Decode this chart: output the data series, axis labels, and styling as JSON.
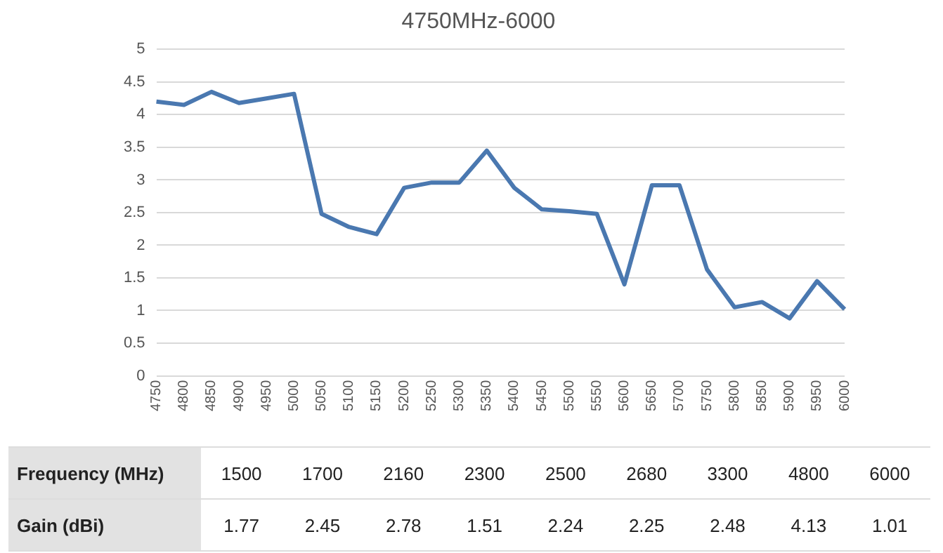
{
  "chart_data": [
    {
      "type": "line",
      "title": "4750MHz-6000",
      "categories": [
        "4750",
        "4800",
        "4850",
        "4900",
        "4950",
        "5000",
        "5050",
        "5100",
        "5150",
        "5200",
        "5250",
        "5300",
        "5350",
        "5400",
        "5450",
        "5500",
        "5550",
        "5600",
        "5650",
        "5700",
        "5750",
        "5800",
        "5850",
        "5900",
        "5950",
        "6000"
      ],
      "series": [
        {
          "color": "#4a78b0",
          "values": [
            4.2,
            4.15,
            4.35,
            4.18,
            4.25,
            4.32,
            2.48,
            2.28,
            2.17,
            2.88,
            2.96,
            2.96,
            3.45,
            2.88,
            2.55,
            2.52,
            2.48,
            1.4,
            2.92,
            2.92,
            1.63,
            1.05,
            1.13,
            0.88,
            1.45,
            1.02
          ]
        }
      ],
      "ylim": [
        0,
        5
      ],
      "yticks": [
        0,
        0.5,
        1,
        1.5,
        2,
        2.5,
        3,
        3.5,
        4,
        4.5,
        5
      ],
      "grid": "y",
      "marker": "none",
      "line_style": "solid"
    },
    {
      "type": "other",
      "xlabel": "Frequency (MHz)",
      "ylabel": "Gain (dBi)",
      "categories": [
        "1500",
        "1700",
        "2160",
        "2300",
        "2500",
        "2680",
        "3300",
        "4800",
        "6000"
      ],
      "values": [
        1.77,
        2.45,
        2.78,
        1.51,
        2.24,
        2.25,
        2.48,
        4.13,
        1.01
      ],
      "data_labels": true
    }
  ]
}
